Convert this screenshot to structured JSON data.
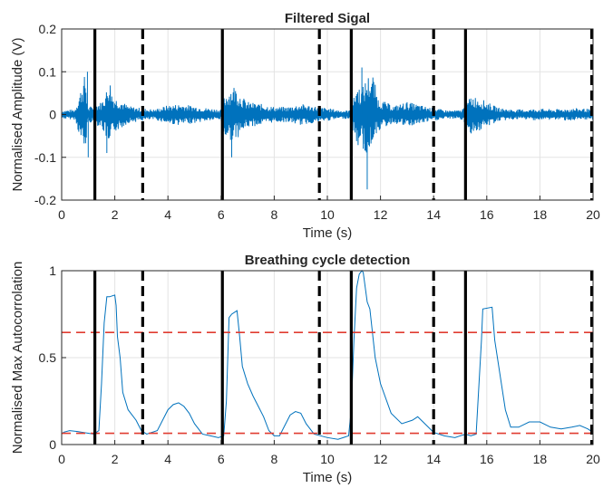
{
  "chart_data": [
    {
      "type": "line",
      "title": "Filtered Sigal",
      "xlabel": "Time (s)",
      "ylabel": "Normalised Amplitude (V)",
      "xlim": [
        0,
        20
      ],
      "ylim": [
        -0.2,
        0.2
      ],
      "xticks": [
        "0",
        "2",
        "4",
        "6",
        "8",
        "10",
        "12",
        "14",
        "16",
        "18",
        "20"
      ],
      "yticks": [
        "-0.2",
        "-0.1",
        "0",
        "0.1",
        "0.2"
      ],
      "grid": true,
      "series_color": "#0072BD",
      "envelope": {
        "x": [
          0,
          0.5,
          0.9,
          0.95,
          1.0,
          1.1,
          1.3,
          1.5,
          1.7,
          1.8,
          1.9,
          2.0,
          2.2,
          2.5,
          3.0,
          3.5,
          4.0,
          4.5,
          5.0,
          5.5,
          6.0,
          6.1,
          6.3,
          6.5,
          6.7,
          6.9,
          7.0,
          7.5,
          8.0,
          8.5,
          9.0,
          9.5,
          10.0,
          10.5,
          10.9,
          11.1,
          11.3,
          11.5,
          11.7,
          11.9,
          12.0,
          12.5,
          13.0,
          13.5,
          14.0,
          14.5,
          15.0,
          15.2,
          15.4,
          15.7,
          16.0,
          16.3,
          16.5,
          17.0,
          17.5,
          18.0,
          18.5,
          19.0,
          19.5,
          20.0
        ],
        "upper": [
          0.01,
          0.012,
          0.1,
          0.03,
          0.015,
          0.02,
          0.025,
          0.03,
          0.06,
          0.09,
          0.05,
          0.04,
          0.035,
          0.02,
          0.015,
          0.012,
          0.022,
          0.025,
          0.02,
          0.015,
          0.012,
          0.04,
          0.06,
          0.07,
          0.05,
          0.035,
          0.03,
          0.025,
          0.018,
          0.018,
          0.025,
          0.02,
          0.015,
          0.01,
          0.01,
          0.07,
          0.06,
          0.09,
          0.1,
          0.04,
          0.035,
          0.02,
          0.03,
          0.022,
          0.015,
          0.01,
          0.01,
          0.02,
          0.045,
          0.04,
          0.03,
          0.02,
          0.015,
          0.012,
          0.012,
          0.014,
          0.012,
          0.014,
          0.015,
          0.012
        ],
        "lower": [
          -0.01,
          -0.012,
          -0.1,
          -0.03,
          -0.015,
          -0.02,
          -0.025,
          -0.03,
          -0.06,
          -0.1,
          -0.05,
          -0.04,
          -0.035,
          -0.02,
          -0.015,
          -0.012,
          -0.022,
          -0.025,
          -0.02,
          -0.015,
          -0.012,
          -0.05,
          -0.06,
          -0.06,
          -0.05,
          -0.035,
          -0.03,
          -0.025,
          -0.018,
          -0.018,
          -0.025,
          -0.02,
          -0.015,
          -0.01,
          -0.01,
          -0.08,
          -0.06,
          -0.11,
          -0.06,
          -0.04,
          -0.035,
          -0.02,
          -0.03,
          -0.022,
          -0.015,
          -0.01,
          -0.01,
          -0.025,
          -0.045,
          -0.04,
          -0.03,
          -0.02,
          -0.015,
          -0.012,
          -0.012,
          -0.014,
          -0.012,
          -0.014,
          -0.015,
          -0.012
        ]
      },
      "spikes": [
        {
          "x": 0.97,
          "y": 0.1
        },
        {
          "x": 1.0,
          "y": -0.1
        },
        {
          "x": 1.7,
          "y": -0.09
        },
        {
          "x": 6.4,
          "y": -0.1
        },
        {
          "x": 11.3,
          "y": 0.11
        },
        {
          "x": 11.5,
          "y": -0.175
        },
        {
          "x": 11.35,
          "y": -0.08
        }
      ],
      "solid_markers": [
        1.25,
        6.05,
        10.9,
        15.2
      ],
      "dashed_markers": [
        3.05,
        9.7,
        14.0,
        19.95
      ]
    },
    {
      "type": "line",
      "title": "Breathing cycle detection",
      "xlabel": "Time (s)",
      "ylabel": "Normalised Max Autocorrolation",
      "xlim": [
        0,
        20
      ],
      "ylim": [
        0,
        1
      ],
      "xticks": [
        "0",
        "2",
        "4",
        "6",
        "8",
        "10",
        "12",
        "14",
        "16",
        "18",
        "20"
      ],
      "yticks": [
        "0",
        "0.5",
        "1"
      ],
      "grid": true,
      "series_color": "#0072BD",
      "x": [
        0.05,
        0.3,
        0.6,
        0.8,
        1.0,
        1.2,
        1.4,
        1.5,
        1.6,
        1.7,
        1.8,
        2.0,
        2.05,
        2.1,
        2.2,
        2.3,
        2.5,
        2.8,
        3.0,
        3.2,
        3.6,
        4.0,
        4.2,
        4.4,
        4.6,
        4.8,
        5.0,
        5.3,
        5.6,
        5.9,
        6.1,
        6.2,
        6.3,
        6.4,
        6.5,
        6.6,
        6.7,
        6.8,
        7.0,
        7.2,
        7.4,
        7.6,
        7.8,
        8.0,
        8.2,
        8.6,
        8.8,
        9.0,
        9.2,
        9.5,
        10.0,
        10.4,
        10.8,
        10.9,
        11.0,
        11.1,
        11.2,
        11.3,
        11.35,
        11.5,
        11.6,
        11.8,
        12.0,
        12.4,
        12.8,
        13.2,
        13.4,
        13.6,
        14.0,
        14.4,
        14.8,
        15.2,
        15.4,
        15.6,
        15.8,
        15.85,
        16.2,
        16.3,
        16.5,
        16.7,
        16.9,
        17.2,
        17.6,
        18.0,
        18.4,
        18.8,
        19.2,
        19.5,
        19.8,
        20.0
      ],
      "y": [
        0.07,
        0.08,
        0.075,
        0.07,
        0.065,
        0.06,
        0.08,
        0.35,
        0.7,
        0.85,
        0.85,
        0.86,
        0.8,
        0.62,
        0.5,
        0.3,
        0.2,
        0.14,
        0.08,
        0.06,
        0.08,
        0.2,
        0.23,
        0.24,
        0.22,
        0.18,
        0.12,
        0.06,
        0.05,
        0.04,
        0.05,
        0.25,
        0.73,
        0.75,
        0.76,
        0.77,
        0.62,
        0.45,
        0.35,
        0.28,
        0.22,
        0.16,
        0.08,
        0.05,
        0.05,
        0.17,
        0.19,
        0.18,
        0.12,
        0.06,
        0.04,
        0.03,
        0.05,
        0.2,
        0.6,
        0.9,
        0.98,
        1.0,
        0.99,
        0.82,
        0.78,
        0.5,
        0.35,
        0.18,
        0.12,
        0.14,
        0.16,
        0.13,
        0.07,
        0.05,
        0.04,
        0.06,
        0.05,
        0.06,
        0.6,
        0.78,
        0.79,
        0.6,
        0.4,
        0.2,
        0.1,
        0.1,
        0.13,
        0.13,
        0.1,
        0.09,
        0.1,
        0.11,
        0.09,
        0.07
      ],
      "thresholds": [
        0.645,
        0.065
      ],
      "threshold_color": "#E03C31",
      "solid_markers": [
        1.25,
        6.05,
        10.9,
        15.2
      ],
      "dashed_markers": [
        3.05,
        9.7,
        14.0,
        19.95
      ]
    }
  ]
}
